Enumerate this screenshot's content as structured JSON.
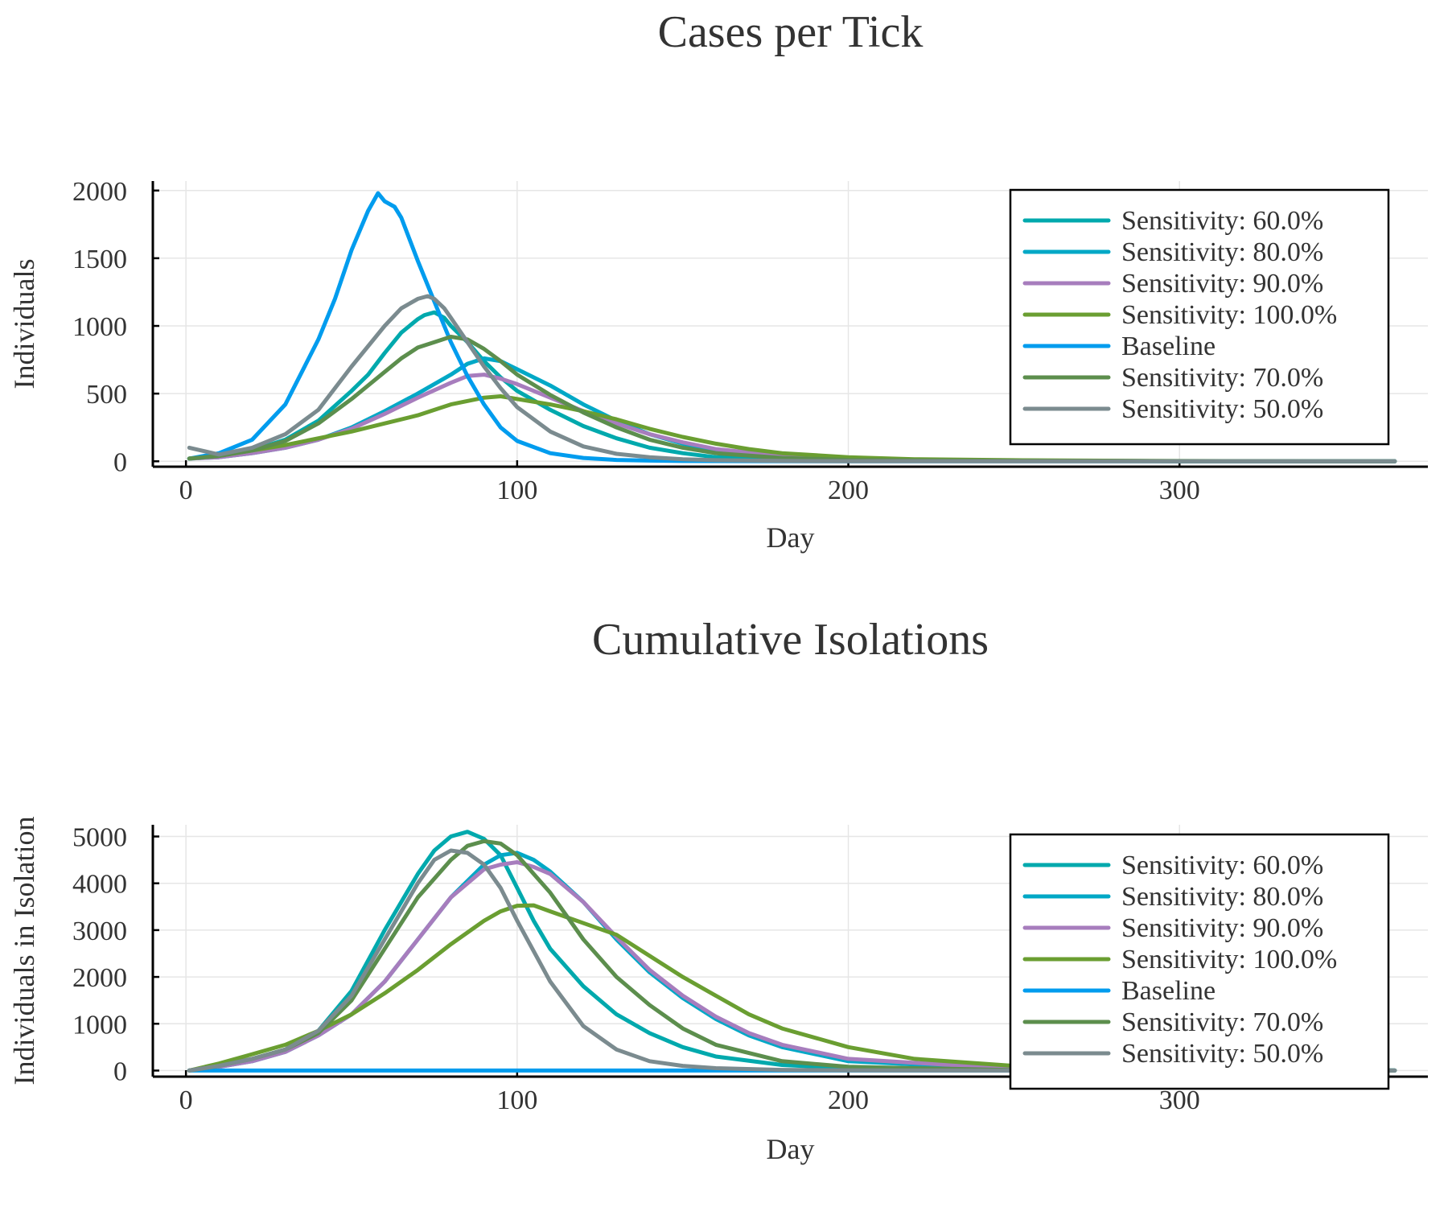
{
  "chart_data": [
    {
      "type": "line",
      "title": "Cases per Tick",
      "xlabel": "Day",
      "ylabel": "Individuals",
      "xlim": [
        -10,
        375
      ],
      "ylim": [
        -40,
        2070
      ],
      "xticks": [
        0,
        100,
        200,
        300
      ],
      "yticks": [
        0,
        500,
        1000,
        1500,
        2000
      ],
      "grid": true,
      "legend_position": "top-right",
      "series": [
        {
          "name": "Sensitivity: 60.0%",
          "color": "#00a9ad",
          "x": [
            1,
            10,
            20,
            30,
            40,
            50,
            55,
            60,
            65,
            70,
            72,
            75,
            78,
            80,
            85,
            90,
            95,
            100,
            110,
            120,
            130,
            140,
            150,
            160,
            180,
            200,
            250,
            300,
            365
          ],
          "y": [
            20,
            40,
            80,
            160,
            300,
            520,
            640,
            800,
            950,
            1050,
            1080,
            1100,
            1060,
            1000,
            880,
            740,
            620,
            520,
            380,
            260,
            170,
            100,
            60,
            30,
            15,
            8,
            3,
            1,
            0
          ]
        },
        {
          "name": "Sensitivity: 80.0%",
          "color": "#00a8c6",
          "x": [
            1,
            10,
            20,
            30,
            40,
            50,
            60,
            70,
            80,
            85,
            90,
            95,
            100,
            110,
            120,
            130,
            140,
            150,
            160,
            180,
            200,
            250,
            300,
            365
          ],
          "y": [
            20,
            30,
            60,
            100,
            160,
            250,
            370,
            500,
            640,
            720,
            760,
            740,
            680,
            560,
            420,
            300,
            200,
            130,
            80,
            35,
            15,
            5,
            1,
            0
          ]
        },
        {
          "name": "Sensitivity: 90.0%",
          "color": "#a77dbd",
          "x": [
            1,
            10,
            20,
            30,
            40,
            50,
            60,
            70,
            80,
            85,
            90,
            95,
            100,
            110,
            120,
            130,
            140,
            150,
            160,
            180,
            200,
            250,
            300,
            365
          ],
          "y": [
            20,
            30,
            60,
            100,
            160,
            240,
            350,
            470,
            580,
            630,
            640,
            610,
            570,
            470,
            370,
            280,
            200,
            140,
            90,
            40,
            15,
            5,
            1,
            0
          ]
        },
        {
          "name": "Sensitivity: 100.0%",
          "color": "#6a9e31",
          "x": [
            1,
            10,
            20,
            30,
            40,
            50,
            60,
            70,
            80,
            90,
            95,
            100,
            110,
            120,
            130,
            140,
            150,
            160,
            170,
            180,
            200,
            220,
            250,
            300,
            365
          ],
          "y": [
            20,
            40,
            80,
            120,
            170,
            220,
            280,
            340,
            420,
            470,
            480,
            460,
            420,
            370,
            310,
            240,
            180,
            130,
            90,
            60,
            30,
            15,
            8,
            2,
            0
          ]
        },
        {
          "name": "Baseline",
          "color": "#009cee",
          "x": [
            1,
            10,
            20,
            30,
            40,
            45,
            50,
            55,
            58,
            60,
            63,
            65,
            70,
            75,
            80,
            85,
            90,
            95,
            100,
            110,
            120,
            130,
            140,
            150,
            200,
            300,
            365
          ],
          "y": [
            20,
            60,
            160,
            420,
            900,
            1200,
            1560,
            1850,
            1980,
            1920,
            1880,
            1800,
            1480,
            1180,
            880,
            630,
            420,
            250,
            150,
            60,
            25,
            10,
            5,
            2,
            0,
            0,
            0
          ]
        },
        {
          "name": "Sensitivity: 70.0%",
          "color": "#5c8e4d",
          "x": [
            1,
            10,
            20,
            30,
            40,
            50,
            60,
            65,
            70,
            75,
            80,
            85,
            90,
            95,
            100,
            110,
            120,
            130,
            140,
            150,
            160,
            180,
            200,
            250,
            300,
            365
          ],
          "y": [
            20,
            40,
            80,
            150,
            280,
            460,
            660,
            760,
            840,
            880,
            920,
            900,
            830,
            740,
            640,
            490,
            360,
            250,
            160,
            100,
            60,
            25,
            10,
            3,
            1,
            0
          ]
        },
        {
          "name": "Sensitivity: 50.0%",
          "color": "#7b8b8f",
          "x": [
            1,
            10,
            20,
            30,
            40,
            50,
            60,
            65,
            70,
            73,
            75,
            78,
            80,
            85,
            90,
            95,
            100,
            110,
            120,
            130,
            140,
            150,
            160,
            180,
            200,
            250,
            300,
            365
          ],
          "y": [
            100,
            50,
            100,
            200,
            380,
            700,
            1000,
            1130,
            1200,
            1220,
            1200,
            1130,
            1060,
            880,
            700,
            540,
            400,
            220,
            110,
            55,
            30,
            15,
            8,
            3,
            1,
            0,
            0,
            0
          ]
        }
      ]
    },
    {
      "type": "line",
      "title": "Cumulative Isolations",
      "xlabel": "Day",
      "ylabel": "Individuals in Isolation",
      "xlim": [
        -10,
        375
      ],
      "ylim": [
        -130,
        5250
      ],
      "xticks": [
        0,
        100,
        200,
        300
      ],
      "yticks": [
        0,
        1000,
        2000,
        3000,
        4000,
        5000
      ],
      "grid": true,
      "legend_position": "right",
      "series": [
        {
          "name": "Sensitivity: 60.0%",
          "color": "#00a9ad",
          "x": [
            1,
            10,
            20,
            30,
            40,
            50,
            60,
            70,
            75,
            80,
            85,
            90,
            95,
            100,
            105,
            110,
            120,
            130,
            140,
            150,
            160,
            180,
            200,
            250,
            300,
            365
          ],
          "y": [
            0,
            100,
            250,
            450,
            850,
            1700,
            3000,
            4200,
            4700,
            5000,
            5100,
            4950,
            4600,
            3900,
            3200,
            2600,
            1800,
            1200,
            800,
            500,
            300,
            120,
            50,
            10,
            2,
            0
          ]
        },
        {
          "name": "Sensitivity: 80.0%",
          "color": "#00a8c6",
          "x": [
            1,
            10,
            20,
            30,
            40,
            50,
            60,
            70,
            80,
            90,
            95,
            100,
            105,
            110,
            120,
            130,
            140,
            150,
            160,
            170,
            180,
            200,
            250,
            300,
            365
          ],
          "y": [
            0,
            80,
            200,
            400,
            750,
            1200,
            1900,
            2800,
            3700,
            4400,
            4600,
            4650,
            4500,
            4250,
            3600,
            2800,
            2100,
            1550,
            1100,
            750,
            500,
            200,
            30,
            5,
            0
          ]
        },
        {
          "name": "Sensitivity: 90.0%",
          "color": "#a77dbd",
          "x": [
            1,
            10,
            20,
            30,
            40,
            50,
            60,
            70,
            80,
            90,
            95,
            100,
            105,
            110,
            120,
            130,
            140,
            150,
            160,
            170,
            180,
            200,
            250,
            300,
            365
          ],
          "y": [
            0,
            80,
            200,
            400,
            750,
            1200,
            1900,
            2800,
            3700,
            4300,
            4400,
            4450,
            4350,
            4200,
            3600,
            2850,
            2150,
            1600,
            1150,
            800,
            550,
            250,
            40,
            5,
            0
          ]
        },
        {
          "name": "Sensitivity: 100.0%",
          "color": "#6a9e31",
          "x": [
            1,
            10,
            20,
            30,
            40,
            50,
            60,
            70,
            80,
            90,
            95,
            100,
            105,
            110,
            120,
            130,
            140,
            150,
            160,
            170,
            180,
            200,
            220,
            250,
            280,
            300,
            365
          ],
          "y": [
            0,
            150,
            350,
            550,
            850,
            1200,
            1650,
            2150,
            2700,
            3200,
            3400,
            3520,
            3530,
            3400,
            3150,
            2900,
            2450,
            2000,
            1600,
            1200,
            900,
            500,
            250,
            100,
            30,
            10,
            0
          ]
        },
        {
          "name": "Baseline",
          "color": "#009cee",
          "x": [
            1,
            100,
            200,
            300,
            365
          ],
          "y": [
            0,
            0,
            0,
            0,
            0
          ]
        },
        {
          "name": "Sensitivity: 70.0%",
          "color": "#5c8e4d",
          "x": [
            1,
            10,
            20,
            30,
            40,
            50,
            60,
            70,
            80,
            85,
            90,
            95,
            100,
            110,
            120,
            130,
            140,
            150,
            160,
            180,
            200,
            250,
            300,
            365
          ],
          "y": [
            0,
            100,
            250,
            450,
            800,
            1500,
            2600,
            3700,
            4500,
            4800,
            4900,
            4850,
            4600,
            3800,
            2800,
            2000,
            1400,
            900,
            550,
            200,
            80,
            10,
            2,
            0
          ]
        },
        {
          "name": "Sensitivity: 50.0%",
          "color": "#7b8b8f",
          "x": [
            1,
            10,
            20,
            30,
            40,
            50,
            60,
            70,
            75,
            80,
            85,
            90,
            95,
            100,
            110,
            120,
            130,
            140,
            150,
            160,
            180,
            200,
            250,
            300,
            365
          ],
          "y": [
            0,
            100,
            250,
            450,
            850,
            1600,
            2800,
            4000,
            4500,
            4700,
            4650,
            4400,
            3900,
            3200,
            1900,
            950,
            450,
            200,
            100,
            50,
            15,
            5,
            1,
            0,
            0
          ]
        }
      ]
    }
  ]
}
